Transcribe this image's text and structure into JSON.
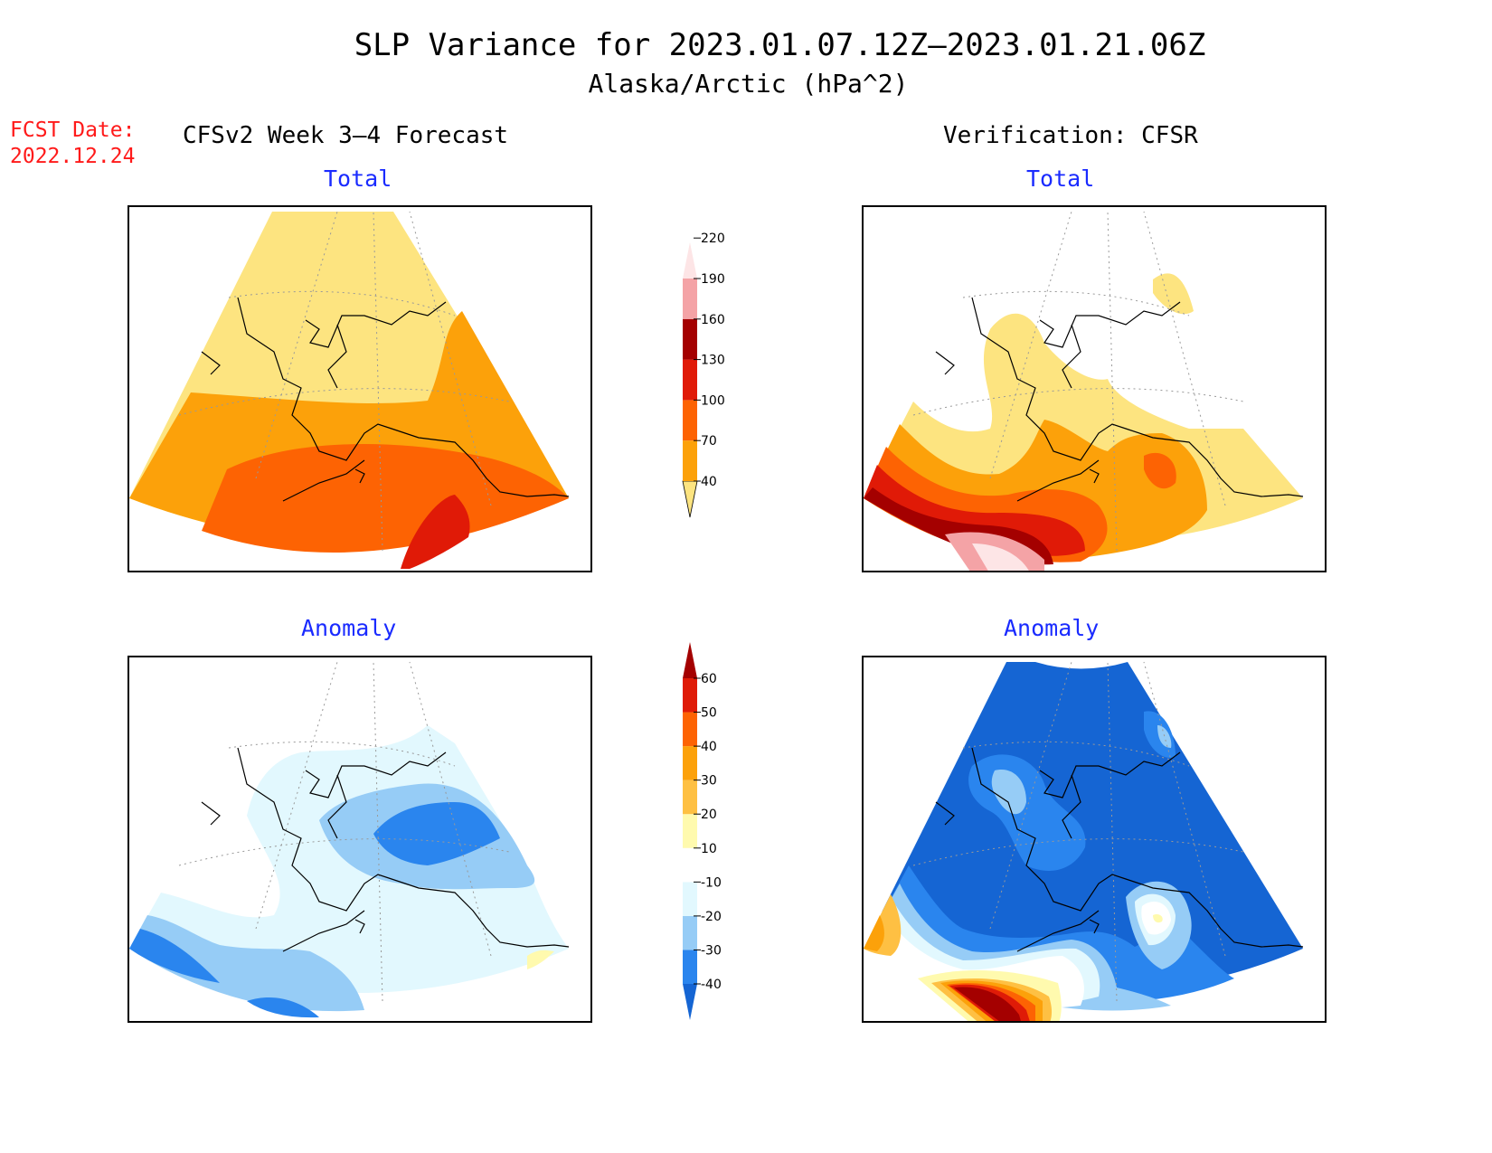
{
  "title": "SLP Variance for 2023.01.07.12Z—2023.01.21.06Z",
  "subtitle": "Alaska/Arctic (hPa^2)",
  "fcst_date": {
    "label": "FCST Date:",
    "value": "2022.12.24"
  },
  "left_column": {
    "header": "CFSv2 Week 3—4 Forecast"
  },
  "right_column": {
    "header": "Verification: CFSR"
  },
  "panels": [
    {
      "id": "forecast-total",
      "title": "Total"
    },
    {
      "id": "verification-total",
      "title": "Total"
    },
    {
      "id": "forecast-anomaly",
      "title": "Anomaly"
    },
    {
      "id": "verification-anomaly",
      "title": "Anomaly"
    }
  ],
  "total_colorbar": {
    "levels": [
      "40",
      "70",
      "100",
      "130",
      "160",
      "190",
      "220"
    ],
    "colors": [
      "#fde480",
      "#fca10a",
      "#fd6303",
      "#e01a07",
      "#a40000",
      "#f4a3a6",
      "#fde5e6"
    ]
  },
  "anomaly_colorbar": {
    "levels": [
      "-40",
      "-30",
      "-20",
      "-10",
      "10",
      "20",
      "30",
      "40",
      "50",
      "60"
    ],
    "colors": [
      "#1565d3",
      "#2a85ee",
      "#96ccf6",
      "#e2f8fe",
      "#ffffff",
      "#fffaae",
      "#fec043",
      "#fca10a",
      "#fd6303",
      "#df1b07",
      "#a40000"
    ]
  }
}
